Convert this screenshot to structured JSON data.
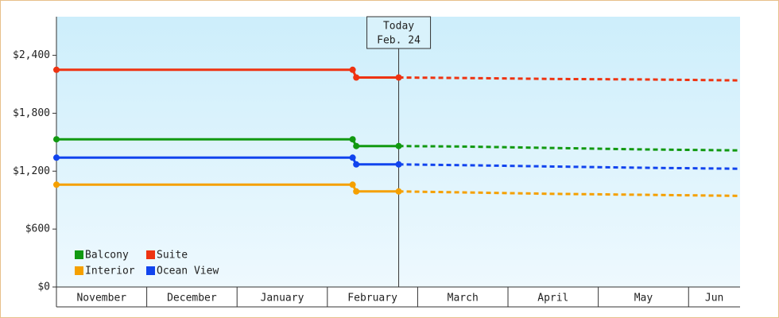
{
  "chart_data": {
    "type": "line",
    "ylim": [
      0,
      2800
    ],
    "yticks": [
      {
        "value": 0,
        "label": "$0"
      },
      {
        "value": 600,
        "label": "$600"
      },
      {
        "value": 1200,
        "label": "$1,200"
      },
      {
        "value": 1800,
        "label": "$1,800"
      },
      {
        "value": 2400,
        "label": "$2,400"
      }
    ],
    "xlim": [
      0,
      7.57
    ],
    "xticks": [
      {
        "value": 0,
        "label": "November"
      },
      {
        "value": 1,
        "label": "December"
      },
      {
        "value": 2,
        "label": "January"
      },
      {
        "value": 3,
        "label": "February"
      },
      {
        "value": 4,
        "label": "March"
      },
      {
        "value": 5,
        "label": "April"
      },
      {
        "value": 6,
        "label": "May"
      },
      {
        "value": 7,
        "label": "Jun"
      }
    ],
    "annotation": {
      "x": 3.79,
      "title": "Today",
      "date": "Feb. 24"
    },
    "series": [
      {
        "name": "Balcony",
        "color": "#119911",
        "x": [
          0,
          3.28,
          3.32,
          3.79
        ],
        "values": [
          1530,
          1530,
          1460,
          1460
        ],
        "forecast_x": [
          3.79,
          4.5,
          5.5,
          6.5,
          7.57
        ],
        "forecast_values": [
          1460,
          1455,
          1440,
          1425,
          1415
        ]
      },
      {
        "name": "Suite",
        "color": "#ee3311",
        "x": [
          0,
          3.28,
          3.32,
          3.79
        ],
        "values": [
          2250,
          2250,
          2170,
          2170
        ],
        "forecast_x": [
          3.79,
          4.5,
          5.5,
          6.5,
          7.57
        ],
        "forecast_values": [
          2170,
          2165,
          2155,
          2150,
          2140
        ]
      },
      {
        "name": "Interior",
        "color": "#f5a000",
        "x": [
          0,
          3.28,
          3.32,
          3.79
        ],
        "values": [
          1060,
          1060,
          990,
          990
        ],
        "forecast_x": [
          3.79,
          4.5,
          5.5,
          6.5,
          7.57
        ],
        "forecast_values": [
          990,
          980,
          965,
          955,
          944
        ]
      },
      {
        "name": "Ocean View",
        "color": "#1144ee",
        "x": [
          0,
          3.28,
          3.32,
          3.79
        ],
        "values": [
          1340,
          1340,
          1270,
          1270
        ],
        "forecast_x": [
          3.79,
          4.5,
          5.5,
          6.5,
          7.57
        ],
        "forecast_values": [
          1270,
          1262,
          1248,
          1235,
          1225
        ]
      }
    ]
  }
}
